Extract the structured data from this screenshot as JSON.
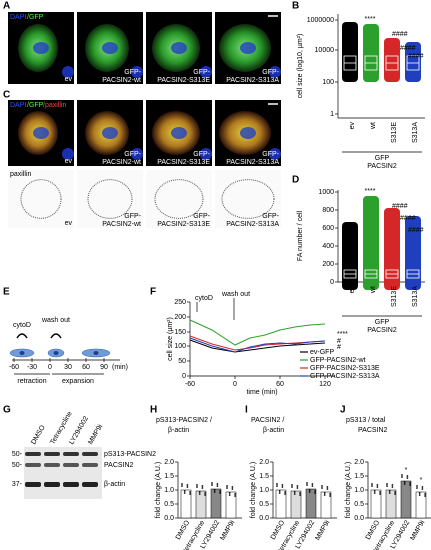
{
  "panels": {
    "A": {
      "label": "A",
      "stain": [
        "DAPI",
        "/GFP"
      ],
      "images": [
        "ev",
        "GFP-PACSIN2-wt",
        "GFP-PACSIN2-S313E",
        "GFP-PACSIN2-S313A"
      ]
    },
    "B": {
      "label": "B",
      "ylabel": "cell size (log10, µm²)",
      "yticks": [
        "1000000",
        "10000",
        "100",
        "1"
      ],
      "categories": [
        "ev",
        "wt",
        "S313E",
        "S313A"
      ],
      "group": [
        "GFP",
        "PACSIN2"
      ],
      "stars": "****",
      "hashes": [
        "####",
        "####",
        "####"
      ]
    },
    "C": {
      "label": "C",
      "stain": [
        "DAPI",
        "/GFP",
        "/paxillin"
      ],
      "images": [
        "ev",
        "GFP-PACSIN2-wt",
        "GFP-PACSIN2-S313E",
        "GFP-PACSIN2-S313A"
      ],
      "gray_title": "paxillin",
      "gray_images": [
        "ev",
        "GFP-PACSIN2-wt",
        "GFP-PACSIN2-S313E",
        "GFP-PACSIN2-S313A"
      ]
    },
    "D": {
      "label": "D",
      "ylabel": "FA number / cell",
      "yticks": [
        "1000",
        "800",
        "600",
        "400",
        "200",
        "0"
      ],
      "categories": [
        "ev",
        "wt",
        "S313E",
        "S313A"
      ],
      "group": [
        "GFP",
        "PACSIN2"
      ],
      "stars": "****",
      "hashes": [
        "####",
        "####",
        "####"
      ]
    },
    "E": {
      "label": "E",
      "cytoD": "cytoD",
      "washout": "wash out",
      "ticks": [
        "-60",
        "-30",
        "0",
        "30",
        "60",
        "90"
      ],
      "unit": "(min)",
      "retraction": "retraction",
      "expansion": "expansion"
    },
    "F": {
      "label": "F",
      "ylabel": "cell size (µm²)",
      "xlabel": "time (min)",
      "yticks": [
        "250",
        "200",
        "150",
        "100",
        "50",
        "0"
      ],
      "xticks": [
        "-60",
        "0",
        "60",
        "120"
      ],
      "cytoD": "cytoD",
      "washout": "wash out",
      "stars": "****",
      "hashes": [
        "#",
        "#"
      ],
      "legend": [
        {
          "name": "ev-GFP",
          "color": "#000000"
        },
        {
          "name": "GFP-PACSIN2-wt",
          "color": "#2ca02c"
        },
        {
          "name": "GFP-PACSIN2-S313E",
          "color": "#d62728"
        },
        {
          "name": "GFP-PACSIN2-S313A",
          "color": "#1f3fbf"
        }
      ]
    },
    "G": {
      "label": "G",
      "lanes": [
        "DMSO",
        "Tetracycline",
        "LY294002",
        "MMP9i"
      ],
      "markers": [
        "50-",
        "50-",
        "37-"
      ],
      "bands": [
        "pS313-PACSIN2",
        "PACSIN2",
        "β-actin"
      ]
    },
    "H": {
      "label": "H",
      "title": [
        "pS313-PACSIN2 /",
        "β-actin"
      ],
      "ylabel": "fold change (A.U.)",
      "yticks": [
        "2.0",
        "1.5",
        "1.0",
        "0.5",
        "0.0"
      ],
      "categories": [
        "DMSO",
        "tetracycline",
        "LY294002",
        "MMP9i"
      ]
    },
    "I": {
      "label": "I",
      "title": [
        "PACSIN2 /",
        "β-actin"
      ],
      "ylabel": "fold change (A.U.)",
      "yticks": [
        "2.0",
        "1.5",
        "1.0",
        "0.5",
        "0.0"
      ],
      "categories": [
        "DMSO",
        "tetracycline",
        "LY294002",
        "MMP9i"
      ]
    },
    "J": {
      "label": "J",
      "title": [
        "pS313 / total",
        "PACSIN2"
      ],
      "ylabel": "fold change (A.U.)",
      "yticks": [
        "2.0",
        "1.5",
        "1.0",
        "0.5",
        "0.0"
      ],
      "categories": [
        "DMSO",
        "tetracycline",
        "LY294002",
        "MMP9i"
      ],
      "stars": [
        "*",
        "*"
      ]
    }
  }
}
